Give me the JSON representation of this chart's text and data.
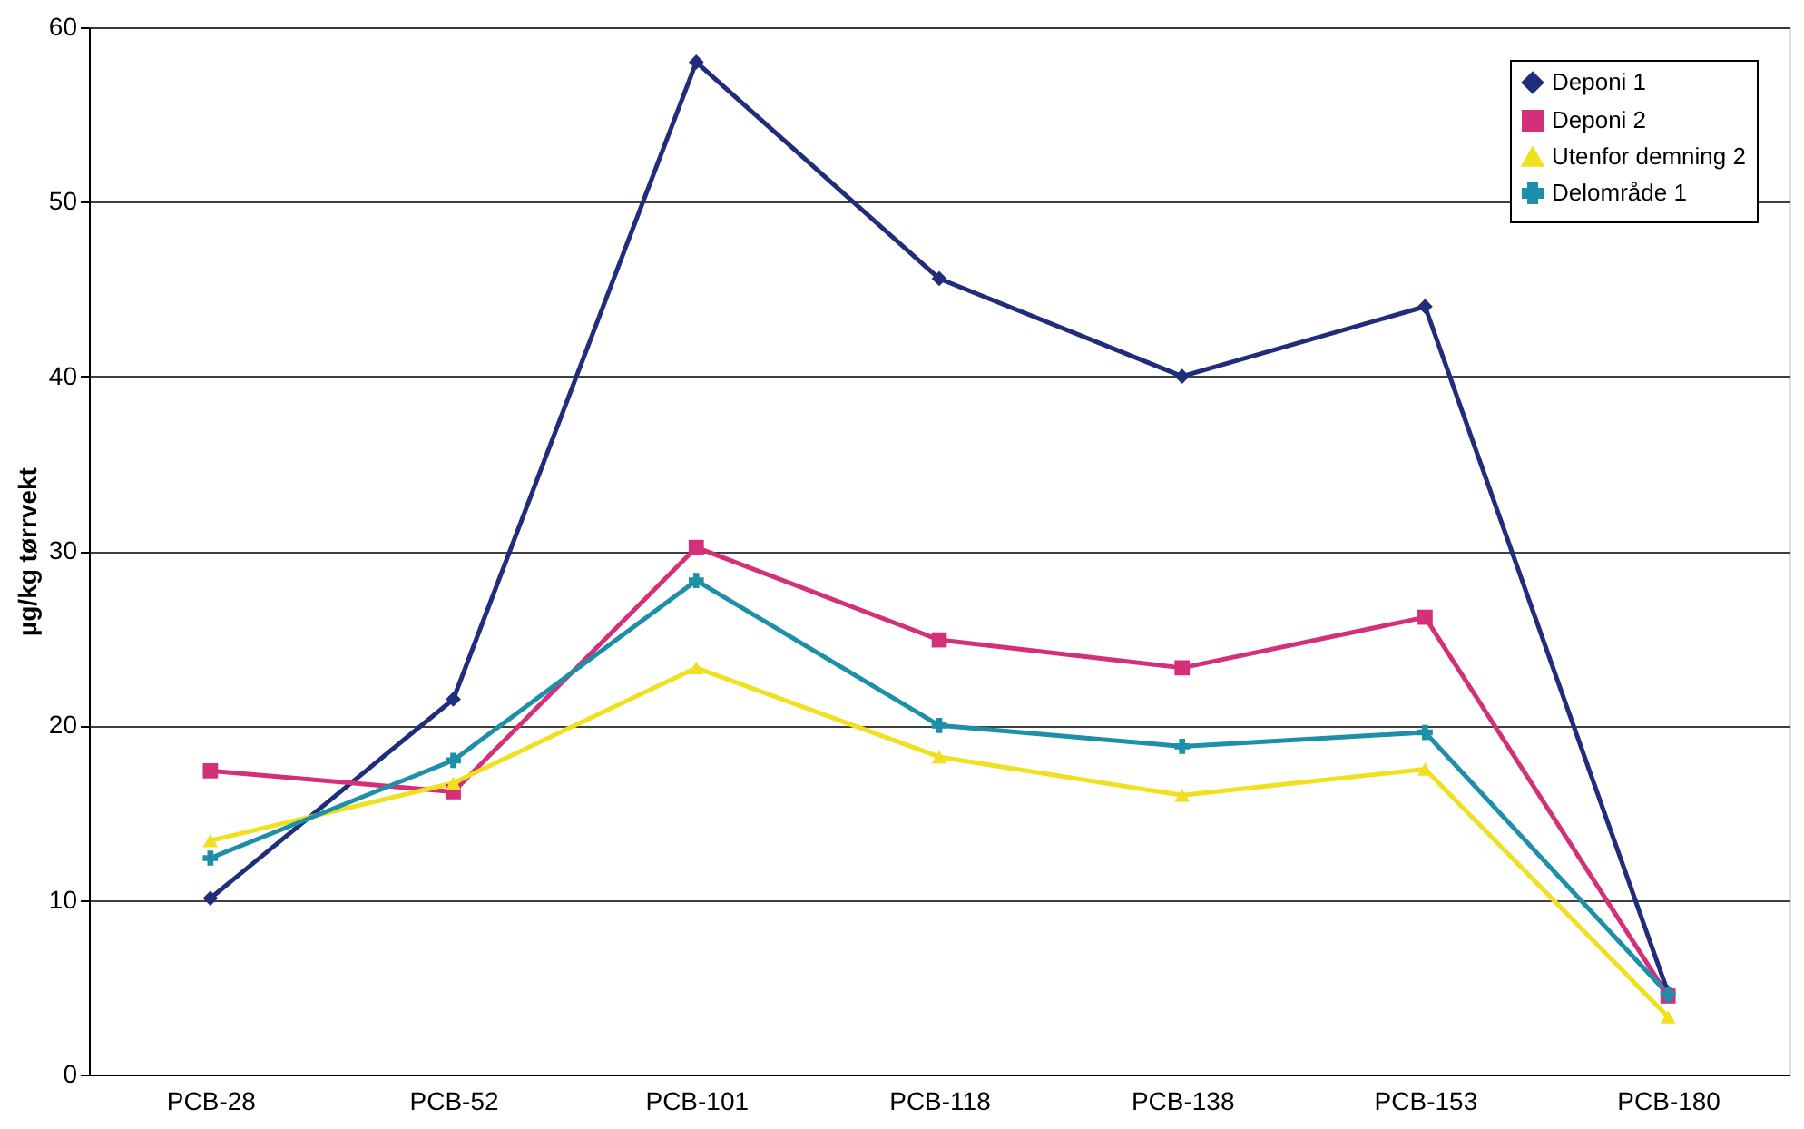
{
  "chart_data": {
    "type": "line",
    "ylabel": "µg/kg tørrvekt",
    "categories": [
      "PCB-28",
      "PCB-52",
      "PCB-101",
      "PCB-118",
      "PCB-138",
      "PCB-153",
      "PCB-180"
    ],
    "series": [
      {
        "name": "Deponi 1",
        "color": "#1f2d7a",
        "marker": "diamond",
        "values": [
          10.1,
          21.5,
          58,
          45.6,
          40,
          44,
          4.7
        ]
      },
      {
        "name": "Deponi 2",
        "color": "#d4307a",
        "marker": "square",
        "values": [
          17.4,
          16.2,
          30.2,
          24.9,
          23.3,
          26.2,
          4.5
        ]
      },
      {
        "name": "Utenfor demning 2",
        "color": "#f0e020",
        "marker": "triangle",
        "values": [
          13.4,
          16.7,
          23.3,
          18.2,
          16.0,
          17.5,
          3.3
        ]
      },
      {
        "name": "Delområde 1",
        "color": "#1e8fa8",
        "marker": "cross",
        "values": [
          12.4,
          18.0,
          28.3,
          20.0,
          18.8,
          19.6,
          4.6
        ]
      }
    ],
    "ylim": [
      0,
      60
    ],
    "yticks": [
      0,
      10,
      20,
      30,
      40,
      50,
      60
    ],
    "grid": "y",
    "legend": "top right",
    "line_style": "solid"
  }
}
